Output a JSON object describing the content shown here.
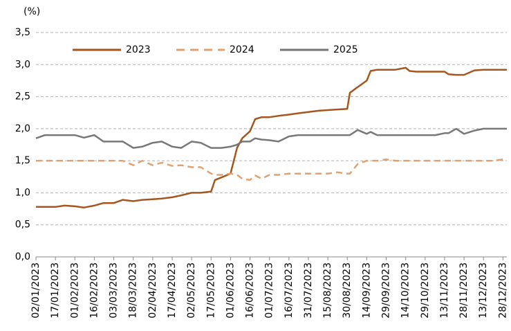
{
  "chart_data": {
    "type": "line",
    "y_label": "(%)",
    "x": [
      "02/01/2023",
      "09/01/2023",
      "17/01/2023",
      "24/01/2023",
      "01/02/2023",
      "08/02/2023",
      "16/02/2023",
      "23/02/2023",
      "03/03/2023",
      "10/03/2023",
      "18/03/2023",
      "25/03/2023",
      "02/04/2023",
      "09/04/2023",
      "17/04/2023",
      "24/04/2023",
      "02/05/2023",
      "09/05/2023",
      "17/05/2023",
      "20/05/2023",
      "25/05/2023",
      "01/06/2023",
      "06/06/2023",
      "10/06/2023",
      "16/06/2023",
      "20/06/2023",
      "25/06/2023",
      "01/07/2023",
      "08/07/2023",
      "16/07/2023",
      "23/07/2023",
      "31/07/2023",
      "08/08/2023",
      "15/08/2023",
      "22/08/2023",
      "30/08/2023",
      "01/09/2023",
      "07/09/2023",
      "14/09/2023",
      "17/09/2023",
      "22/09/2023",
      "29/09/2023",
      "06/10/2023",
      "14/10/2023",
      "17/10/2023",
      "22/10/2023",
      "29/10/2023",
      "06/11/2023",
      "13/11/2023",
      "16/11/2023",
      "22/11/2023",
      "28/11/2023",
      "06/12/2023",
      "13/12/2023",
      "20/12/2023",
      "28/12/2023",
      "31/12/2023"
    ],
    "series": [
      {
        "name": "2023",
        "color": "#a5561e",
        "dash": "solid",
        "values": [
          0.78,
          0.78,
          0.78,
          0.8,
          0.79,
          0.77,
          0.8,
          0.84,
          0.84,
          0.89,
          0.87,
          0.89,
          0.9,
          0.91,
          0.93,
          0.96,
          1.0,
          1.0,
          1.02,
          1.2,
          1.24,
          1.3,
          1.7,
          1.85,
          1.96,
          2.15,
          2.18,
          2.18,
          2.2,
          2.22,
          2.24,
          2.26,
          2.28,
          2.29,
          2.3,
          2.31,
          2.56,
          2.65,
          2.75,
          2.9,
          2.92,
          2.92,
          2.92,
          2.95,
          2.9,
          2.89,
          2.89,
          2.89,
          2.89,
          2.85,
          2.84,
          2.84,
          2.91,
          2.92,
          2.92,
          2.92,
          2.92
        ]
      },
      {
        "name": "2024",
        "color": "#dea174",
        "dash": "dashed",
        "values": [
          1.5,
          1.5,
          1.5,
          1.5,
          1.5,
          1.5,
          1.5,
          1.5,
          1.5,
          1.5,
          1.43,
          1.5,
          1.43,
          1.47,
          1.42,
          1.43,
          1.4,
          1.4,
          1.3,
          1.28,
          1.28,
          1.3,
          1.28,
          1.22,
          1.2,
          1.27,
          1.22,
          1.28,
          1.28,
          1.3,
          1.3,
          1.3,
          1.3,
          1.3,
          1.32,
          1.3,
          1.3,
          1.45,
          1.5,
          1.5,
          1.5,
          1.52,
          1.5,
          1.5,
          1.5,
          1.5,
          1.5,
          1.5,
          1.5,
          1.5,
          1.5,
          1.5,
          1.5,
          1.5,
          1.5,
          1.52,
          1.52
        ]
      },
      {
        "name": "2025",
        "color": "#777777",
        "dash": "solid",
        "values": [
          1.85,
          1.9,
          1.9,
          1.9,
          1.9,
          1.86,
          1.9,
          1.8,
          1.8,
          1.8,
          1.7,
          1.72,
          1.78,
          1.8,
          1.72,
          1.7,
          1.8,
          1.78,
          1.7,
          1.7,
          1.7,
          1.72,
          1.75,
          1.8,
          1.8,
          1.85,
          1.83,
          1.82,
          1.8,
          1.88,
          1.9,
          1.9,
          1.9,
          1.9,
          1.9,
          1.9,
          1.9,
          1.98,
          1.92,
          1.95,
          1.9,
          1.9,
          1.9,
          1.9,
          1.9,
          1.9,
          1.9,
          1.9,
          1.93,
          1.93,
          2.0,
          1.92,
          1.97,
          2.0,
          2.0,
          2.0,
          2.0
        ]
      }
    ],
    "xlim": [
      "02/01/2023",
      "31/12/2023"
    ],
    "xticks": [
      "02/01/2023",
      "17/01/2023",
      "01/02/2023",
      "16/02/2023",
      "03/03/2023",
      "18/03/2023",
      "02/04/2023",
      "17/04/2023",
      "02/05/2023",
      "17/05/2023",
      "01/06/2023",
      "16/06/2023",
      "01/07/2023",
      "16/07/2023",
      "31/07/2023",
      "15/08/2023",
      "30/08/2023",
      "14/09/2023",
      "29/09/2023",
      "14/10/2023",
      "29/10/2023",
      "13/11/2023",
      "28/11/2023",
      "13/12/2023",
      "28/12/2023"
    ],
    "ylim": [
      0,
      3.5
    ],
    "yticks": [
      {
        "value": 0,
        "label": "0,0"
      },
      {
        "value": 0.5,
        "label": "0,5"
      },
      {
        "value": 1,
        "label": "1,0"
      },
      {
        "value": 1.5,
        "label": "1,5"
      },
      {
        "value": 2,
        "label": "2,0"
      },
      {
        "value": 2.5,
        "label": "2,5"
      },
      {
        "value": 3,
        "label": "3,0"
      },
      {
        "value": 3.5,
        "label": "3,5"
      }
    ],
    "grid": true,
    "legend": "top"
  }
}
